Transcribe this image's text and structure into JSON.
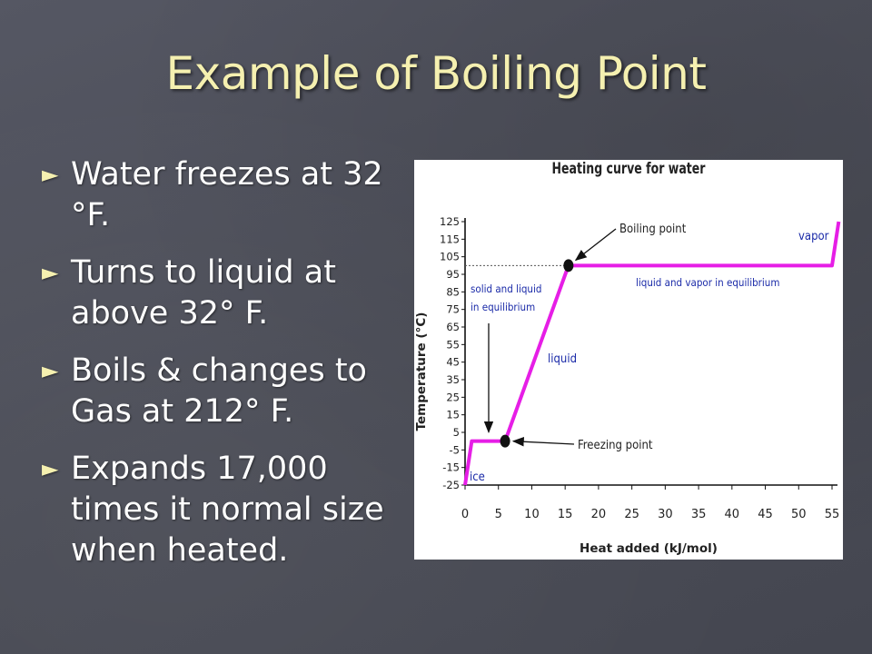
{
  "slide": {
    "title": "Example of Boiling Point",
    "bullet_glyph": "►",
    "bullets": [
      "Water freezes at 32 °F.",
      "Turns to liquid at above 32° F.",
      "Boils & changes to Gas at 212° F.",
      "Expands 17,000 times it normal size when heated."
    ]
  },
  "colors": {
    "background": "#4d4f59",
    "title": "#f5f0b0",
    "bullet_text": "#ffffff",
    "curve": "#e61ee6",
    "annotation_blue": "#1a2aa8"
  },
  "chart_data": {
    "type": "line",
    "title": "Heating curve for water",
    "xlabel": "Heat added (kJ/mol)",
    "ylabel": "Temperature (°C)",
    "xlim": [
      0,
      55
    ],
    "ylim": [
      -25,
      125
    ],
    "xticks": [
      0,
      5,
      10,
      15,
      20,
      25,
      30,
      35,
      40,
      45,
      50,
      55
    ],
    "yticks": [
      125,
      115,
      105,
      95,
      85,
      75,
      65,
      55,
      45,
      35,
      25,
      15,
      5,
      -5,
      -15,
      -25
    ],
    "series": [
      {
        "x": [
          0,
          1,
          6,
          15.5,
          55,
          56
        ],
        "y": [
          -25,
          0,
          0,
          100,
          100,
          125
        ]
      }
    ],
    "markers": [
      {
        "x": 6,
        "y": 0
      },
      {
        "x": 15.5,
        "y": 100
      }
    ],
    "reference_line_y": 100,
    "annotations": {
      "boiling_point": "Boiling point",
      "freezing_point": "Freezing point",
      "solid_liquid_1": "solid and liquid",
      "solid_liquid_2": "in equilibrium",
      "liquid_vapor": "liquid and vapor in equilibrium",
      "liquid": "liquid",
      "vapor": "vapor",
      "ice": "ice"
    },
    "grid": false
  }
}
